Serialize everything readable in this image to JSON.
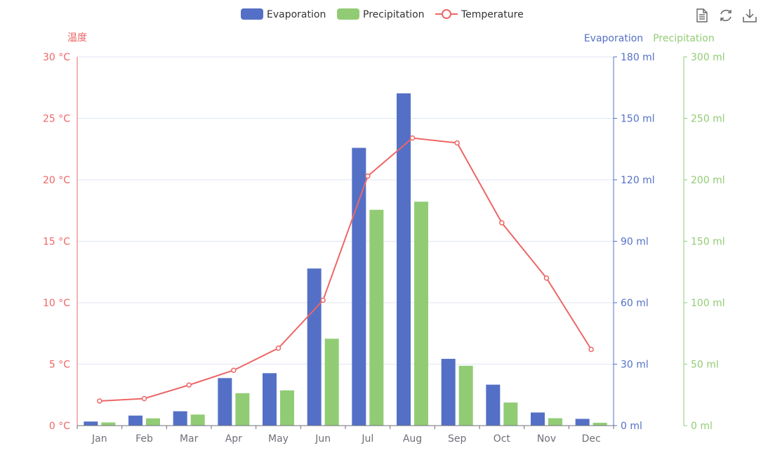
{
  "toolbox": {
    "items": [
      {
        "name": "data-view-icon"
      },
      {
        "name": "restore-icon"
      },
      {
        "name": "save-image-icon"
      }
    ]
  },
  "colors": {
    "evaporation": "#5470c6",
    "precipitation": "#91cc75",
    "temperature": "#ee6666",
    "grid": "#e0e6f1",
    "category_axis": "#6e7079",
    "category_text": "#6e7079"
  },
  "chart_data": {
    "type": "bar",
    "categories": [
      "Jan",
      "Feb",
      "Mar",
      "Apr",
      "May",
      "Jun",
      "Jul",
      "Aug",
      "Sep",
      "Oct",
      "Nov",
      "Dec"
    ],
    "legend": [
      "Evaporation",
      "Precipitation",
      "Temperature"
    ],
    "legend_position": "top-center",
    "grid": true,
    "series": [
      {
        "name": "Evaporation",
        "type": "bar",
        "axis": "evaporation",
        "values": [
          2.0,
          4.9,
          7.0,
          23.2,
          25.6,
          76.7,
          135.6,
          162.2,
          32.6,
          20.0,
          6.4,
          3.3
        ]
      },
      {
        "name": "Precipitation",
        "type": "bar",
        "axis": "precipitation",
        "values": [
          2.6,
          5.9,
          9.0,
          26.4,
          28.7,
          70.7,
          175.6,
          182.2,
          48.7,
          18.8,
          6.0,
          2.3
        ]
      },
      {
        "name": "Temperature",
        "type": "line",
        "axis": "temperature",
        "values": [
          2.0,
          2.2,
          3.3,
          4.5,
          6.3,
          10.2,
          20.3,
          23.4,
          23.0,
          16.5,
          12.0,
          6.2
        ]
      }
    ],
    "axes": {
      "temperature": {
        "name": "温度",
        "unit": "°C",
        "min": 0,
        "max": 30,
        "interval": 5,
        "position": "left"
      },
      "evaporation": {
        "name": "Evaporation",
        "unit": "ml",
        "min": 0,
        "max": 180,
        "interval": 30,
        "position": "right"
      },
      "precipitation": {
        "name": "Precipitation",
        "unit": "ml",
        "min": 0,
        "max": 300,
        "interval": 50,
        "position": "right-offset"
      }
    }
  }
}
